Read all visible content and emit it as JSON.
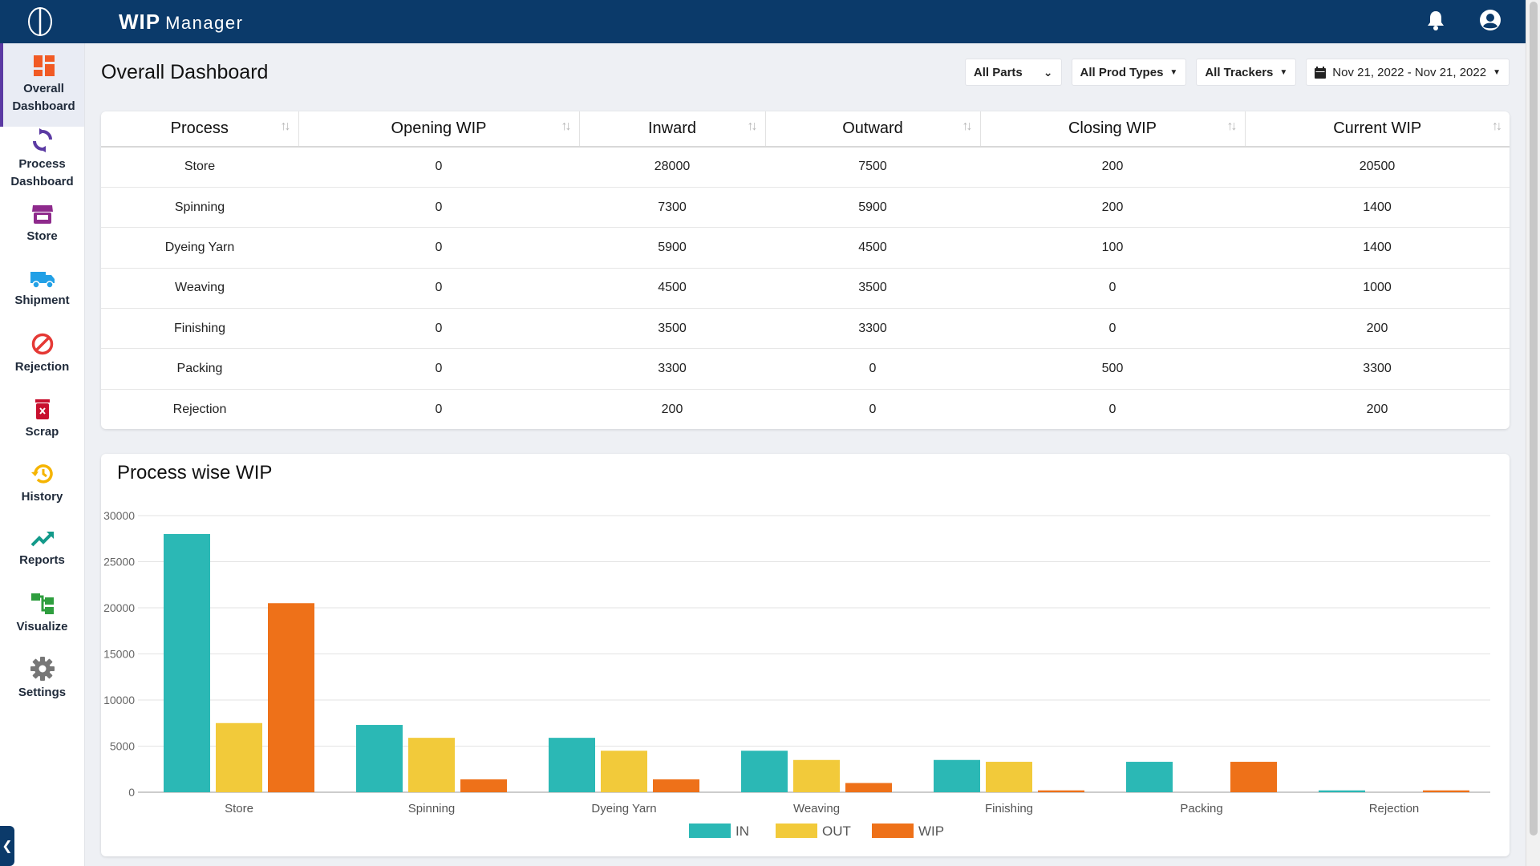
{
  "header": {
    "app_name": "WIP",
    "app_sub": "Manager",
    "logo_icon": "logo-icon",
    "bell_icon": "bell-icon",
    "account_icon": "account-icon",
    "bg_color": "#0b3a6a"
  },
  "sidebar": {
    "items": [
      {
        "label": "Overall Dashboard",
        "icon": "dashboard-grid-icon",
        "color": "#f15a24",
        "active": true
      },
      {
        "label": "Process Dashboard",
        "icon": "cycle-icon",
        "color": "#5b3aa3"
      },
      {
        "label": "Store",
        "icon": "store-icon",
        "color": "#8e2a8c"
      },
      {
        "label": "Shipment",
        "icon": "truck-icon",
        "color": "#22a0e6"
      },
      {
        "label": "Rejection",
        "icon": "ban-icon",
        "color": "#e53935"
      },
      {
        "label": "Scrap",
        "icon": "trash-icon",
        "color": "#c8102e"
      },
      {
        "label": "History",
        "icon": "history-icon",
        "color": "#f5b400"
      },
      {
        "label": "Reports",
        "icon": "trend-icon",
        "color": "#139a8a"
      },
      {
        "label": "Visualize",
        "icon": "tree-icon",
        "color": "#2e9e3e"
      },
      {
        "label": "Settings",
        "icon": "gear-icon",
        "color": "#777777"
      }
    ]
  },
  "page": {
    "title": "Overall Dashboard",
    "filters": {
      "parts": "All Parts",
      "prod_types": "All Prod Types",
      "trackers": "All Trackers",
      "date_range": "Nov 21, 2022 - Nov 21, 2022"
    }
  },
  "table": {
    "columns": [
      "Process",
      "Opening WIP",
      "Inward",
      "Outward",
      "Closing WIP",
      "Current WIP"
    ],
    "rows": [
      [
        "Store",
        "0",
        "28000",
        "7500",
        "200",
        "20500"
      ],
      [
        "Spinning",
        "0",
        "7300",
        "5900",
        "200",
        "1400"
      ],
      [
        "Dyeing Yarn",
        "0",
        "5900",
        "4500",
        "100",
        "1400"
      ],
      [
        "Weaving",
        "0",
        "4500",
        "3500",
        "0",
        "1000"
      ],
      [
        "Finishing",
        "0",
        "3500",
        "3300",
        "0",
        "200"
      ],
      [
        "Packing",
        "0",
        "3300",
        "0",
        "500",
        "3300"
      ],
      [
        "Rejection",
        "0",
        "200",
        "0",
        "0",
        "200"
      ]
    ]
  },
  "chart_data": {
    "type": "bar",
    "title": "Process wise WIP",
    "categories": [
      "Store",
      "Spinning",
      "Dyeing Yarn",
      "Weaving",
      "Finishing",
      "Packing",
      "Rejection"
    ],
    "series": [
      {
        "name": "IN",
        "color": "#2bb8b5",
        "values": [
          28000,
          7300,
          5900,
          4500,
          3500,
          3300,
          200
        ]
      },
      {
        "name": "OUT",
        "color": "#f2ca3a",
        "values": [
          7500,
          5900,
          4500,
          3500,
          3300,
          0,
          0
        ]
      },
      {
        "name": "WIP",
        "color": "#ee7119",
        "values": [
          20500,
          1400,
          1400,
          1000,
          200,
          3300,
          200
        ]
      }
    ],
    "yticks": [
      0,
      5000,
      10000,
      15000,
      20000,
      25000,
      30000
    ],
    "ylim": [
      0,
      30000
    ],
    "grid": true,
    "legend": "bottom-center"
  }
}
